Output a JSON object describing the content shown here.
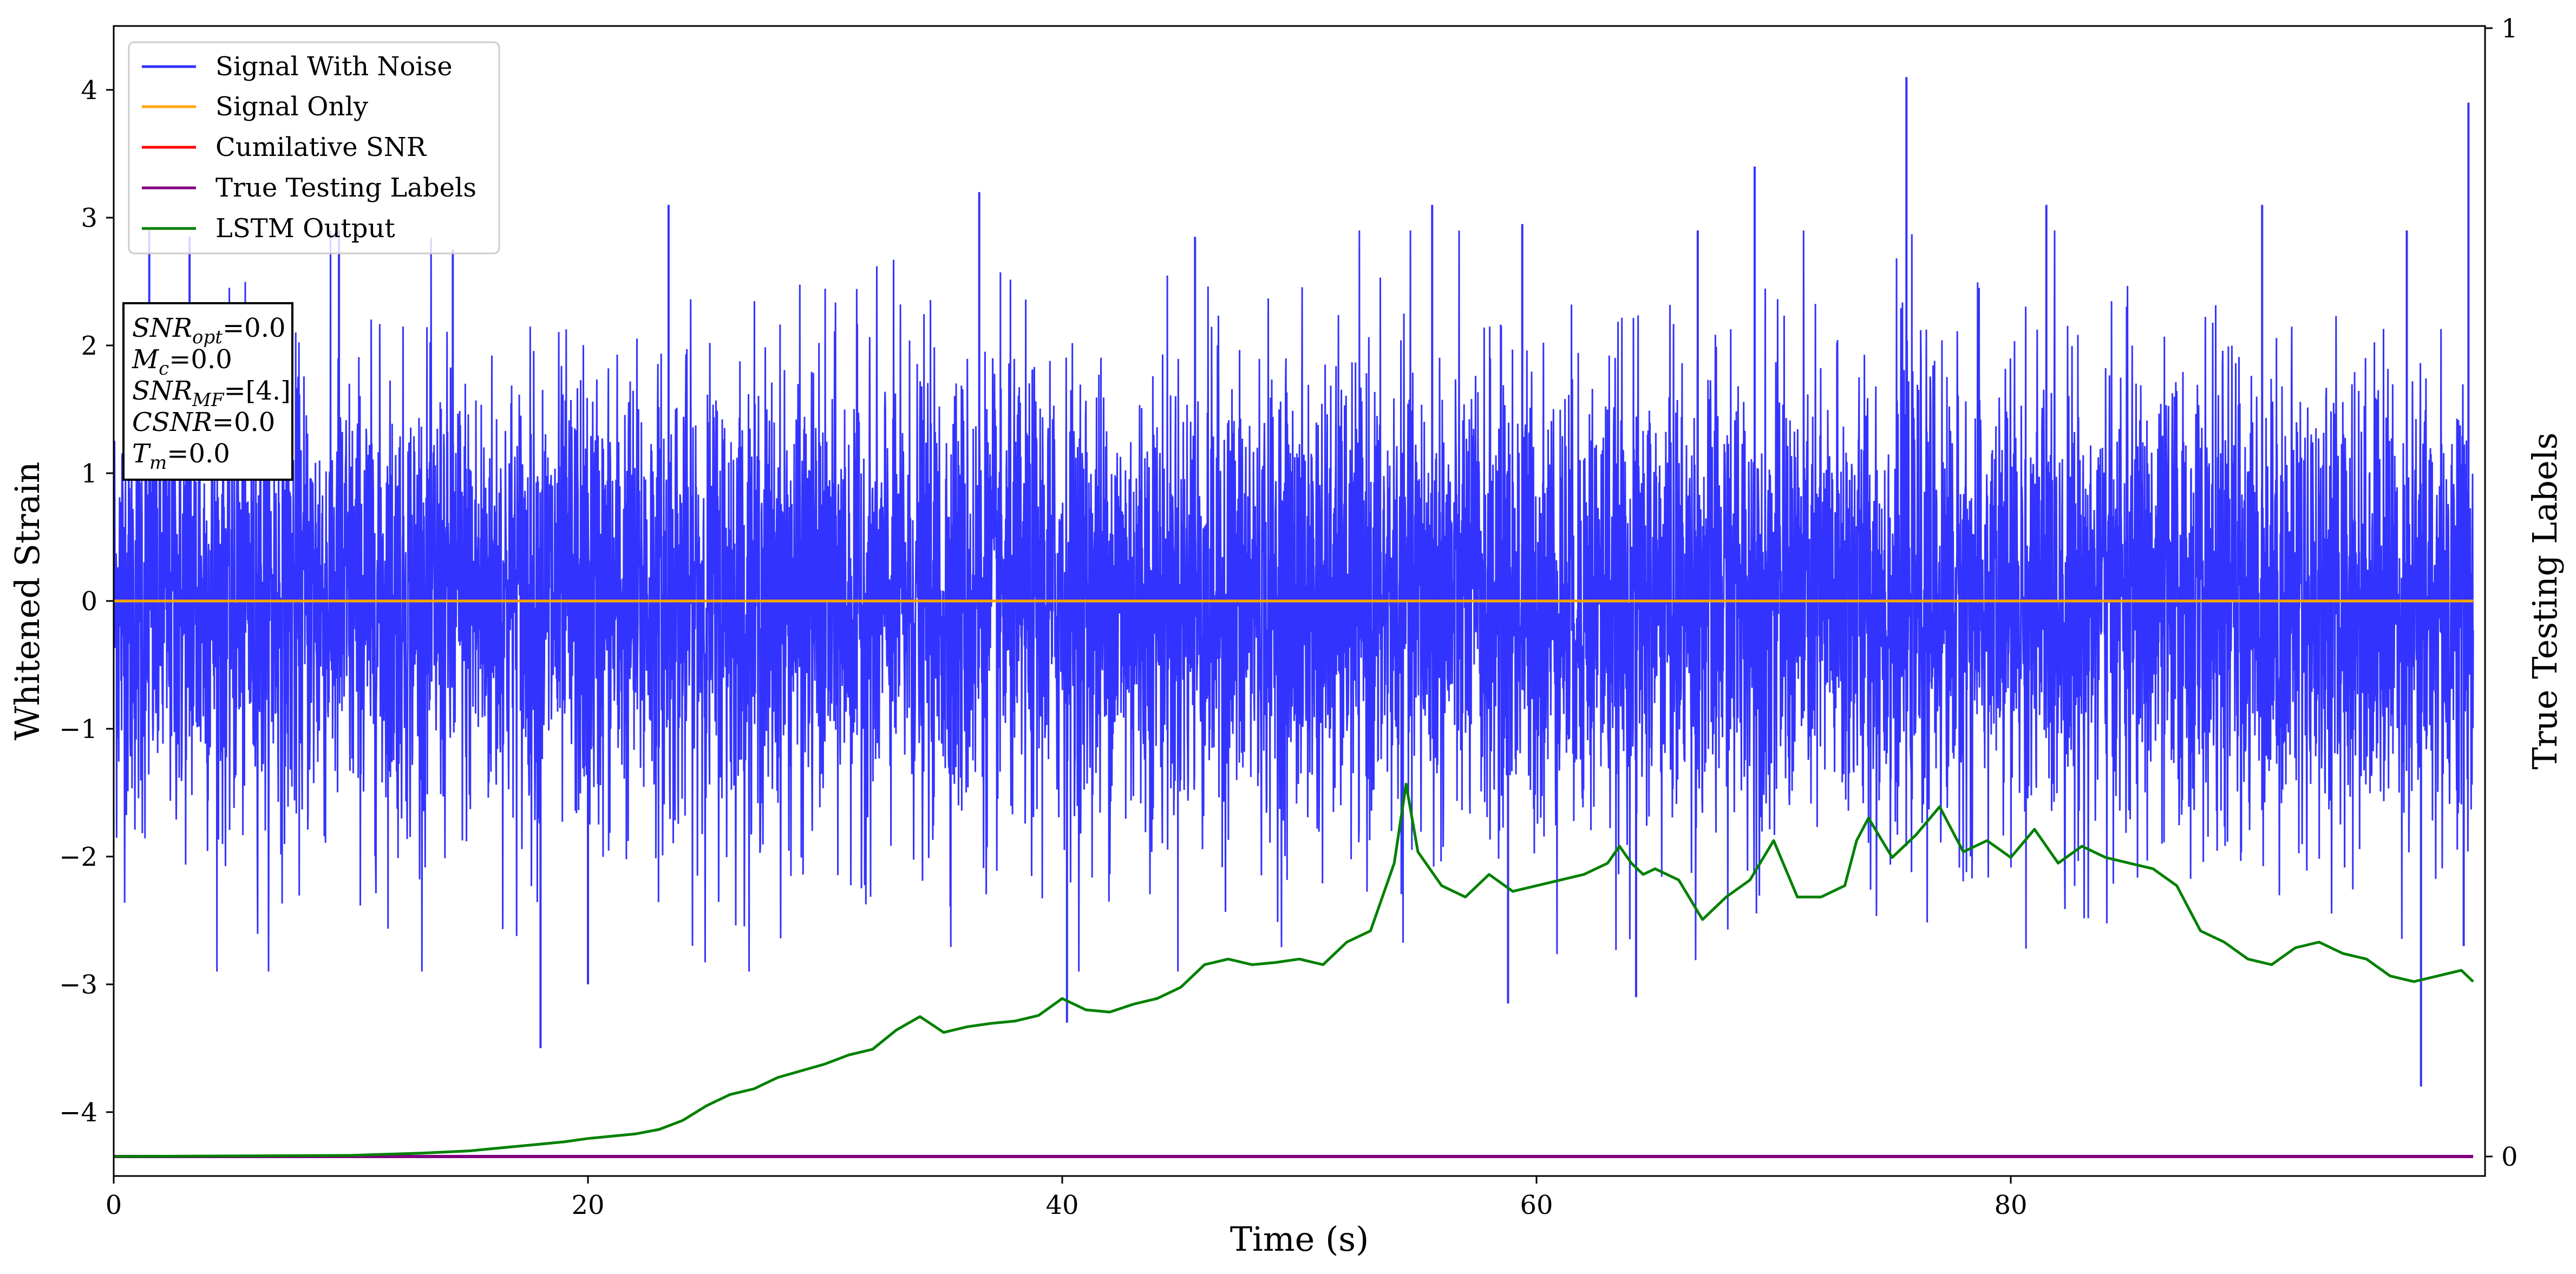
{
  "chart_data": {
    "type": "line",
    "xlabel": "Time (s)",
    "ylabel": "Whitened Strain",
    "y2label": "True Testing Labels",
    "xlim": [
      0,
      100
    ],
    "ylim": [
      -4.5,
      4.5
    ],
    "y2lim": [
      0,
      1
    ],
    "xticks": [
      0,
      20,
      40,
      60,
      80
    ],
    "yticks": [
      -4,
      -3,
      -2,
      -1,
      0,
      1,
      2,
      3,
      4
    ],
    "y2ticks": [
      0,
      1
    ],
    "grid": false,
    "legend_placement": "top-left",
    "colors": {
      "signal_with_noise": "#3333ff",
      "signal_only": "#ffa500",
      "cumulative_snr": "#ff0000",
      "true_labels": "#800080",
      "lstm_output": "#008000"
    },
    "series": [
      {
        "name": "Signal With Noise",
        "axis": "left",
        "noise_spread": 1.8,
        "positive_peaks": [
          {
            "x": 1.5,
            "y": 2.9
          },
          {
            "x": 3.2,
            "y": 2.85
          },
          {
            "x": 9.5,
            "y": 2.9
          },
          {
            "x": 14.3,
            "y": 2.75
          },
          {
            "x": 23.4,
            "y": 3.1
          },
          {
            "x": 36.5,
            "y": 3.2
          },
          {
            "x": 45.6,
            "y": 2.85
          },
          {
            "x": 55.6,
            "y": 3.1
          },
          {
            "x": 59.4,
            "y": 2.95
          },
          {
            "x": 66.8,
            "y": 2.9
          },
          {
            "x": 69.2,
            "y": 3.4
          },
          {
            "x": 75.6,
            "y": 4.1
          },
          {
            "x": 81.5,
            "y": 3.1
          },
          {
            "x": 90.6,
            "y": 3.1
          },
          {
            "x": 96.7,
            "y": 2.9
          },
          {
            "x": 99.3,
            "y": 3.9
          }
        ],
        "negative_peaks": [
          {
            "x": 18.0,
            "y": -3.5
          },
          {
            "x": 20.0,
            "y": -3.0
          },
          {
            "x": 40.2,
            "y": -3.3
          },
          {
            "x": 58.8,
            "y": -3.15
          },
          {
            "x": 64.2,
            "y": -3.1
          },
          {
            "x": 97.3,
            "y": -3.8
          },
          {
            "x": 99.1,
            "y": -2.7
          }
        ]
      },
      {
        "name": "Signal Only",
        "axis": "left",
        "x": [
          0,
          100
        ],
        "y": [
          0,
          0
        ]
      },
      {
        "name": "Cumilative SNR",
        "axis": "left",
        "x": [
          0,
          100
        ],
        "y": [
          0,
          0
        ]
      },
      {
        "name": "True Testing Labels",
        "axis": "right",
        "x": [
          0,
          100
        ],
        "y": [
          0,
          0
        ]
      },
      {
        "name": "LSTM Output",
        "axis": "right",
        "x": [
          0,
          10,
          13,
          15,
          16,
          17,
          18,
          19,
          20,
          21,
          22,
          23,
          24,
          25,
          26,
          27,
          28,
          29,
          30,
          31,
          32,
          33,
          34,
          35,
          36,
          37,
          38,
          39,
          40,
          41,
          42,
          43,
          44,
          45,
          46,
          47,
          48,
          49,
          50,
          51,
          52,
          53,
          54,
          54.5,
          55,
          56,
          57,
          58,
          59,
          60,
          61,
          62,
          63,
          63.5,
          64,
          64.5,
          65,
          66,
          67,
          68,
          69,
          70,
          71,
          72,
          73,
          73.5,
          74,
          75,
          76,
          77,
          78,
          79,
          80,
          81,
          82,
          83,
          84,
          85,
          86,
          87,
          88,
          89,
          90,
          91,
          92,
          93,
          94,
          95,
          96,
          97,
          98,
          99,
          99.5
        ],
        "y": [
          0,
          0.001,
          0.003,
          0.005,
          0.007,
          0.009,
          0.011,
          0.013,
          0.016,
          0.018,
          0.02,
          0.024,
          0.032,
          0.045,
          0.055,
          0.06,
          0.07,
          0.076,
          0.082,
          0.09,
          0.095,
          0.112,
          0.124,
          0.11,
          0.115,
          0.118,
          0.12,
          0.125,
          0.14,
          0.13,
          0.128,
          0.135,
          0.14,
          0.15,
          0.17,
          0.175,
          0.17,
          0.172,
          0.175,
          0.17,
          0.19,
          0.2,
          0.26,
          0.33,
          0.27,
          0.24,
          0.23,
          0.25,
          0.235,
          0.24,
          0.245,
          0.25,
          0.26,
          0.275,
          0.26,
          0.25,
          0.255,
          0.245,
          0.21,
          0.23,
          0.245,
          0.28,
          0.23,
          0.23,
          0.24,
          0.28,
          0.3,
          0.265,
          0.285,
          0.31,
          0.27,
          0.28,
          0.265,
          0.29,
          0.26,
          0.275,
          0.265,
          0.26,
          0.255,
          0.24,
          0.2,
          0.19,
          0.175,
          0.17,
          0.185,
          0.19,
          0.18,
          0.175,
          0.16,
          0.155,
          0.16,
          0.165,
          0.155
        ]
      }
    ],
    "annotation_box": {
      "lines": [
        {
          "base": "SNR",
          "sub": "opt",
          "rest": "=0.0"
        },
        {
          "base": "M",
          "sub": "c",
          "rest": "=0.0"
        },
        {
          "base": "SNR",
          "sub": "MF",
          "rest": "=[4.]"
        },
        {
          "base": "CSNR",
          "sub": "",
          "rest": "=0.0"
        },
        {
          "base": "T",
          "sub": "m",
          "rest": "=0.0"
        }
      ]
    }
  }
}
